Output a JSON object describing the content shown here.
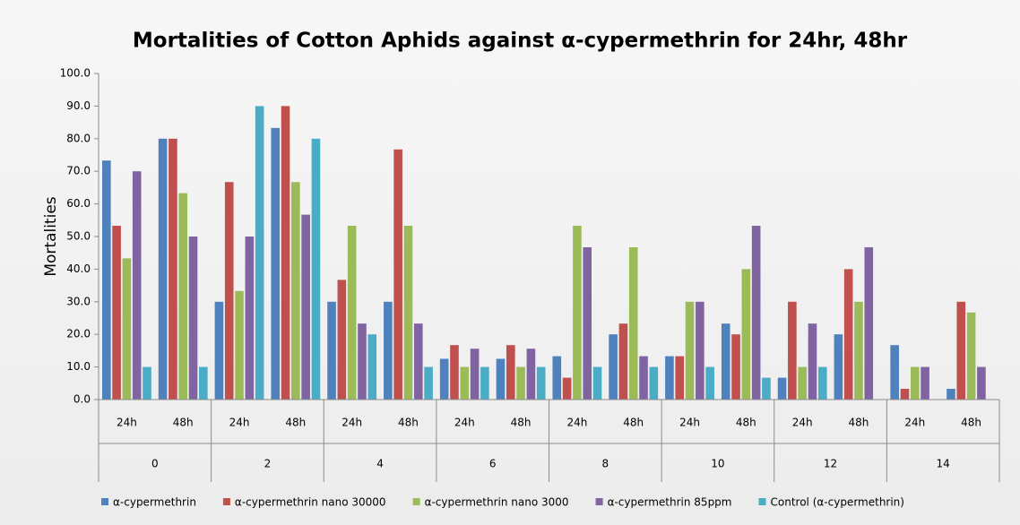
{
  "chart_data": {
    "type": "bar",
    "title": "Mortalities of Cotton Aphids against α-cypermethrin for 24hr, 48hr",
    "y_label": "Mortalities",
    "categories": [
      "24h",
      "48h",
      "24h",
      "48h",
      "24h",
      "48h",
      "24h",
      "48h",
      "24h",
      "48h",
      "24h",
      "48h",
      "24h",
      "48h",
      "24h",
      "48h"
    ],
    "groups": [
      "0",
      "2",
      "4",
      "6",
      "8",
      "10",
      "12",
      "14"
    ],
    "series": [
      {
        "name": "α-cypermethrin",
        "color": "#4f81bd",
        "values": [
          73.3,
          80,
          30,
          83.3,
          30,
          30,
          12.5,
          12.5,
          13.3,
          20,
          13.3,
          23.3,
          6.7,
          20,
          16.7,
          3.3
        ]
      },
      {
        "name": "α-cypermethrin nano 30000",
        "color": "#c0504d",
        "values": [
          53.3,
          80,
          66.7,
          90,
          36.7,
          76.7,
          16.7,
          16.7,
          6.7,
          23.3,
          13.3,
          20,
          30,
          40,
          3.3,
          30
        ]
      },
      {
        "name": "α-cypermethrin nano 3000",
        "color": "#9bbb59",
        "values": [
          43.3,
          63.3,
          33.3,
          66.7,
          53.3,
          53.3,
          10,
          10,
          53.3,
          46.7,
          30,
          40,
          10,
          30,
          10,
          26.7
        ]
      },
      {
        "name": "α-cypermethrin 85ppm",
        "color": "#8064a2",
        "values": [
          70,
          50,
          50,
          56.7,
          23.3,
          23.3,
          15.6,
          15.6,
          46.7,
          13.3,
          30,
          53.3,
          23.3,
          46.7,
          10,
          10
        ]
      },
      {
        "name": "Control (α-cypermethrin)",
        "color": "#4bacc6",
        "values": [
          10,
          10,
          90,
          80,
          20,
          10,
          10,
          10,
          10,
          10,
          10,
          6.7,
          10,
          0,
          0,
          0
        ]
      }
    ],
    "ylim": [
      0,
      100
    ],
    "yticks": [
      {
        "value": 0,
        "label": "0.0"
      },
      {
        "value": 10,
        "label": "10.0"
      },
      {
        "value": 20,
        "label": "20.0"
      },
      {
        "value": 30,
        "label": "30.0"
      },
      {
        "value": 40,
        "label": "40.0"
      },
      {
        "value": 50,
        "label": "50.0"
      },
      {
        "value": 60,
        "label": "60.0"
      },
      {
        "value": 70,
        "label": "70.0"
      },
      {
        "value": 80,
        "label": "80.0"
      },
      {
        "value": 90,
        "label": "90.0"
      },
      {
        "value": 100,
        "label": "100.0"
      }
    ],
    "grid": false,
    "legend": "bottom"
  }
}
